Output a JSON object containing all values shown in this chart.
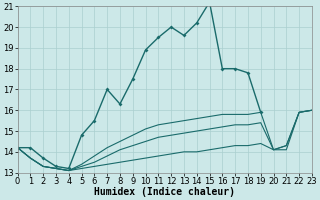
{
  "xlabel": "Humidex (Indice chaleur)",
  "bg_color": "#cce8e8",
  "grid_color": "#aacfcf",
  "line_color": "#1a6b6b",
  "hours": [
    0,
    1,
    2,
    3,
    4,
    5,
    6,
    7,
    8,
    9,
    10,
    11,
    12,
    13,
    14,
    15,
    16,
    17,
    18,
    19,
    20,
    21,
    22,
    23
  ],
  "series_main": [
    14.2,
    14.2,
    13.7,
    13.3,
    13.2,
    14.8,
    15.5,
    17.0,
    16.3,
    17.5,
    18.9,
    19.5,
    20.0,
    19.6,
    20.2,
    21.2,
    18.0,
    18.0,
    17.8,
    15.9,
    null,
    null,
    null,
    null
  ],
  "series_diag1": [
    14.2,
    null,
    null,
    null,
    null,
    null,
    null,
    null,
    null,
    null,
    null,
    null,
    null,
    null,
    null,
    null,
    null,
    null,
    null,
    null,
    null,
    null,
    null,
    16.0
  ],
  "series_diag2": [
    14.2,
    null,
    null,
    null,
    null,
    null,
    null,
    null,
    null,
    null,
    null,
    null,
    null,
    null,
    null,
    null,
    null,
    null,
    null,
    null,
    null,
    null,
    null,
    16.0
  ],
  "series_diag3": [
    14.2,
    null,
    null,
    null,
    null,
    null,
    null,
    null,
    null,
    null,
    null,
    null,
    null,
    null,
    null,
    null,
    null,
    null,
    null,
    null,
    null,
    null,
    null,
    16.0
  ],
  "series_lower": [
    14.2,
    13.7,
    13.3,
    13.2,
    13.1,
    13.2,
    13.3,
    13.4,
    13.5,
    13.6,
    13.7,
    13.8,
    13.9,
    14.0,
    14.0,
    14.1,
    14.2,
    14.3,
    14.3,
    14.4,
    14.1,
    14.1,
    15.9,
    16.0
  ],
  "series_mid": [
    14.2,
    13.7,
    13.3,
    13.2,
    13.1,
    13.3,
    13.5,
    13.8,
    14.1,
    14.3,
    14.5,
    14.7,
    14.8,
    14.9,
    15.0,
    15.1,
    15.2,
    15.3,
    15.3,
    15.4,
    14.1,
    14.3,
    15.9,
    16.0
  ],
  "series_upper_diag": [
    14.2,
    13.7,
    13.3,
    13.2,
    13.1,
    13.4,
    13.8,
    14.2,
    14.5,
    14.8,
    15.1,
    15.3,
    15.4,
    15.5,
    15.6,
    15.7,
    15.8,
    15.8,
    15.8,
    15.9,
    14.1,
    14.3,
    15.9,
    16.0
  ],
  "ylim": [
    13,
    21
  ],
  "xlim": [
    0,
    23
  ],
  "yticks": [
    13,
    14,
    15,
    16,
    17,
    18,
    19,
    20,
    21
  ],
  "xticks": [
    0,
    1,
    2,
    3,
    4,
    5,
    6,
    7,
    8,
    9,
    10,
    11,
    12,
    13,
    14,
    15,
    16,
    17,
    18,
    19,
    20,
    21,
    22,
    23
  ],
  "xlabel_fontsize": 7,
  "tick_fontsize": 6
}
